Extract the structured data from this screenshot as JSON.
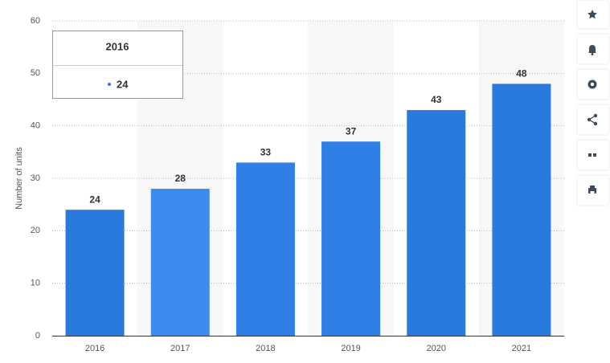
{
  "chart_data": {
    "type": "bar",
    "y_label": "Number of units",
    "categories": [
      "2016",
      "2017",
      "2018",
      "2019",
      "2020",
      "2021"
    ],
    "values": [
      24,
      28,
      33,
      37,
      43,
      48
    ],
    "colors": [
      "#2a79dd",
      "#3d8af0",
      "#2f7fe6",
      "#2f7fe6",
      "#2a79dd",
      "#2a79dd"
    ],
    "ylim": [
      0,
      60
    ],
    "yticks": [
      0,
      10,
      20,
      30,
      40,
      50,
      60
    ],
    "grid": true,
    "tooltip_index": 0
  }
}
